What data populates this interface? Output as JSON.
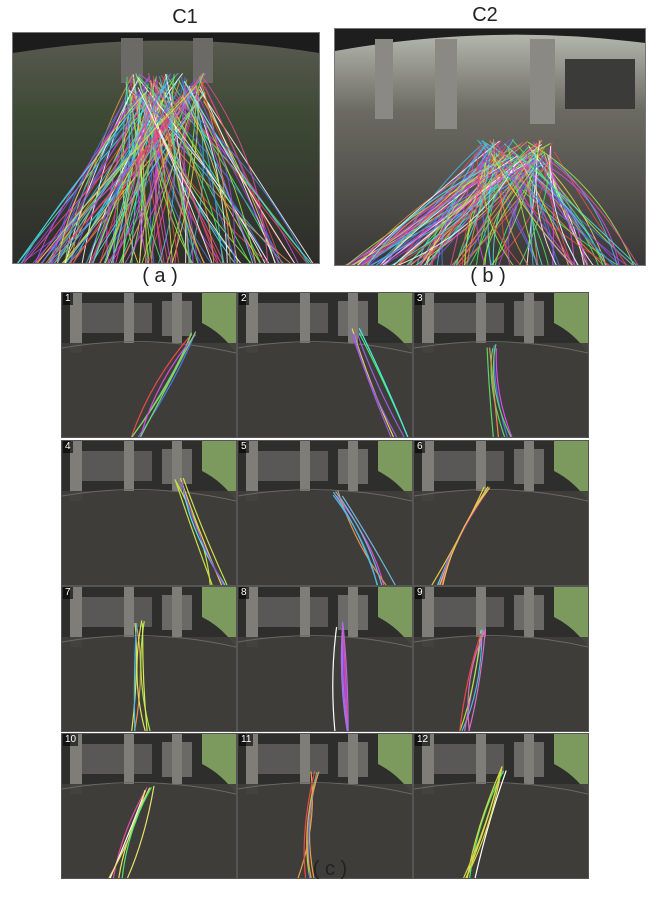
{
  "figure": {
    "camera_labels": [
      "C1",
      "C2"
    ],
    "subcaptions": [
      "( a )",
      "( b )",
      "( c )"
    ],
    "grid_cells": [
      {
        "num": "1",
        "color": "#7ad46b"
      },
      {
        "num": "2",
        "color": "#9b5fe0"
      },
      {
        "num": "3",
        "color": "#5fd46b"
      },
      {
        "num": "4",
        "color": "#c8e04a"
      },
      {
        "num": "5",
        "color": "#6fb7d8"
      },
      {
        "num": "6",
        "color": "#e8c84a"
      },
      {
        "num": "7",
        "color": "#d8e85a"
      },
      {
        "num": "8",
        "color": "#a86ee8"
      },
      {
        "num": "9",
        "color": "#d86ec8"
      },
      {
        "num": "10",
        "color": "#e8e06a"
      },
      {
        "num": "11",
        "color": "#e8a04a"
      },
      {
        "num": "12",
        "color": "#d8d84a"
      }
    ]
  }
}
